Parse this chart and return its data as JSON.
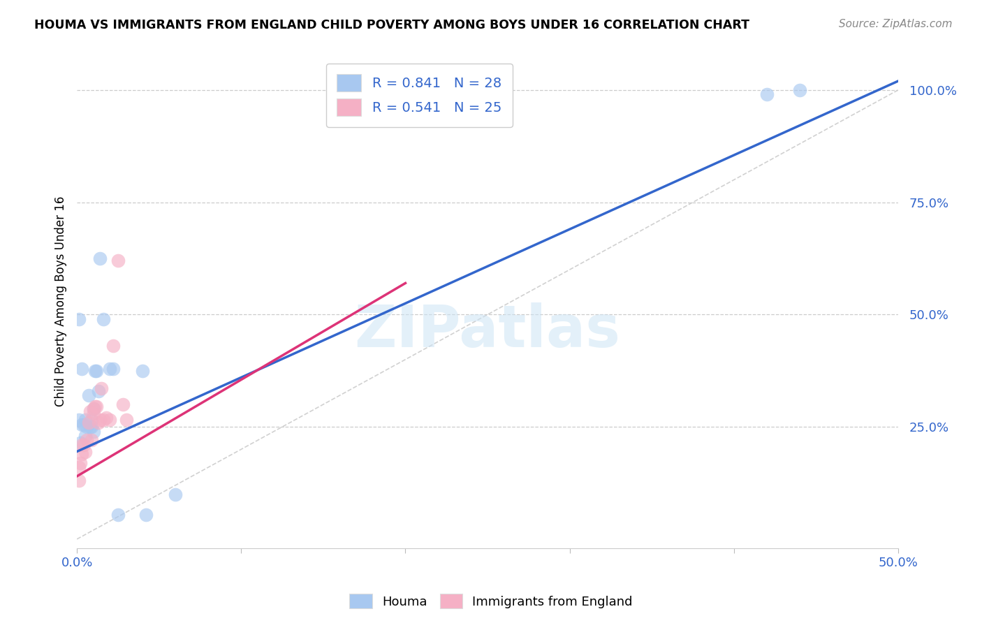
{
  "title": "HOUMA VS IMMIGRANTS FROM ENGLAND CHILD POVERTY AMONG BOYS UNDER 16 CORRELATION CHART",
  "source": "Source: ZipAtlas.com",
  "ylabel": "Child Poverty Among Boys Under 16",
  "xlim": [
    0.0,
    0.5
  ],
  "ylim": [
    -0.02,
    1.08
  ],
  "xticks": [
    0.0,
    0.1,
    0.2,
    0.3,
    0.4,
    0.5
  ],
  "yticks": [
    0.25,
    0.5,
    0.75,
    1.0
  ],
  "ytick_labels": [
    "25.0%",
    "50.0%",
    "75.0%",
    "100.0%"
  ],
  "xtick_labels": [
    "0.0%",
    "",
    "",
    "",
    "",
    "50.0%"
  ],
  "blue_R": "0.841",
  "blue_N": "28",
  "pink_R": "0.541",
  "pink_N": "25",
  "blue_color": "#a8c8f0",
  "pink_color": "#f5b0c5",
  "blue_line_color": "#3366cc",
  "pink_line_color": "#dd3377",
  "diagonal_color": "#cccccc",
  "houma_x": [
    0.001,
    0.002,
    0.003,
    0.004,
    0.005,
    0.005,
    0.006,
    0.007,
    0.008,
    0.009,
    0.009,
    0.01,
    0.01,
    0.011,
    0.012,
    0.013,
    0.014,
    0.016,
    0.02,
    0.022,
    0.025,
    0.04,
    0.042,
    0.06,
    0.42,
    0.44,
    0.001,
    0.003
  ],
  "houma_y": [
    0.265,
    0.215,
    0.255,
    0.255,
    0.23,
    0.265,
    0.25,
    0.32,
    0.25,
    0.25,
    0.265,
    0.24,
    0.29,
    0.375,
    0.375,
    0.33,
    0.625,
    0.49,
    0.38,
    0.38,
    0.055,
    0.375,
    0.055,
    0.1,
    0.99,
    1.0,
    0.49,
    0.38
  ],
  "england_x": [
    0.001,
    0.001,
    0.002,
    0.003,
    0.003,
    0.004,
    0.005,
    0.006,
    0.007,
    0.008,
    0.009,
    0.01,
    0.01,
    0.011,
    0.012,
    0.013,
    0.014,
    0.015,
    0.016,
    0.018,
    0.02,
    0.022,
    0.025,
    0.028,
    0.03
  ],
  "england_y": [
    0.13,
    0.16,
    0.17,
    0.19,
    0.21,
    0.21,
    0.195,
    0.22,
    0.26,
    0.285,
    0.22,
    0.28,
    0.29,
    0.295,
    0.295,
    0.26,
    0.265,
    0.335,
    0.265,
    0.27,
    0.265,
    0.43,
    0.62,
    0.3,
    0.265
  ],
  "blue_line_x0": 0.0,
  "blue_line_y0": 0.195,
  "blue_line_x1": 0.5,
  "blue_line_y1": 1.02,
  "pink_line_x0": 0.0,
  "pink_line_y0": 0.14,
  "pink_line_x1": 0.2,
  "pink_line_y1": 0.57,
  "watermark": "ZIPatlas",
  "legend_text_color": "#3366cc"
}
